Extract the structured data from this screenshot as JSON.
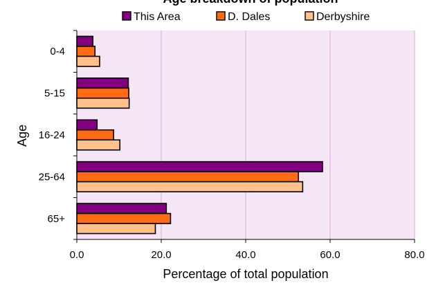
{
  "chart_data": {
    "type": "bar",
    "orientation": "horizontal",
    "title": "Age breakdown of population",
    "xlabel": "Percentage of total population",
    "ylabel": "Age",
    "categories": [
      "0-4",
      "5-15",
      "16-24",
      "25-64",
      "65+"
    ],
    "series": [
      {
        "name": "This Area",
        "color": "#800080",
        "values": [
          3.8,
          12.2,
          4.8,
          58.2,
          21.2
        ]
      },
      {
        "name": "D. Dales",
        "color": "#FF6A13",
        "values": [
          4.3,
          12.3,
          8.7,
          52.5,
          22.2
        ]
      },
      {
        "name": "Derbyshire",
        "color": "#FFC08A",
        "values": [
          5.4,
          12.4,
          10.2,
          53.5,
          18.6
        ]
      }
    ],
    "xlim": [
      0,
      80
    ],
    "xticks": [
      "0.0",
      "20.0",
      "40.0",
      "60.0",
      "80.0"
    ],
    "grid": true,
    "legend_position": "top",
    "plot_background": "#F5E6F5"
  }
}
